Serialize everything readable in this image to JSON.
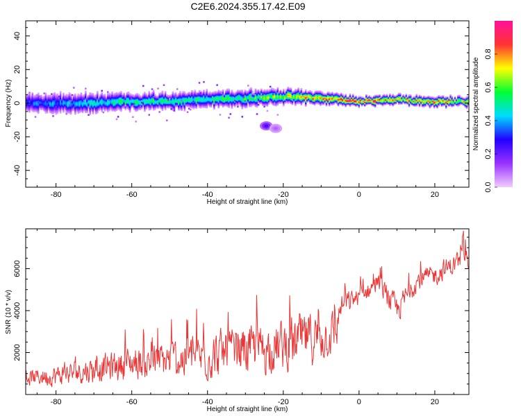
{
  "title": "C2E6.2024.355.17.42.E09",
  "colors": {
    "snr_line": "#ee3333",
    "colormap": [
      "#f2ccff",
      "#9933ff",
      "#2200ff",
      "#00ddff",
      "#00ff33",
      "#ffff00",
      "#ff3333",
      "#ff1199"
    ]
  },
  "chart_data": [
    {
      "type": "heatmap",
      "xlabel": "Height of straight line (km)",
      "ylabel": "Frequency (Hz)",
      "xlim": [
        -88,
        29
      ],
      "ylim": [
        -50,
        49
      ],
      "x_ticks": [
        -80,
        -60,
        -40,
        -20,
        0,
        20
      ],
      "y_ticks": [
        -40,
        -20,
        0,
        20,
        40
      ],
      "colorbar": {
        "label": "Normalized spectral amplitude",
        "range": [
          0.0,
          1.0
        ],
        "ticks": [
          "0.0",
          "0.2",
          "0.4",
          "0.6",
          "0.8"
        ]
      },
      "ridge": {
        "x": [
          -88,
          -80,
          -70,
          -60,
          -50,
          -40,
          -30,
          -20,
          -10,
          0,
          10,
          20,
          29
        ],
        "center": [
          0,
          0,
          0,
          1,
          1,
          2,
          3,
          4,
          3,
          1,
          2,
          1,
          1
        ],
        "width": [
          4,
          4,
          4,
          3.5,
          3.5,
          3.5,
          3.5,
          3,
          2.5,
          2,
          2,
          2,
          2
        ],
        "peak_amplitude": [
          0.35,
          0.4,
          0.5,
          0.55,
          0.55,
          0.55,
          0.6,
          0.7,
          0.85,
          0.95,
          0.8,
          0.85,
          0.75
        ]
      },
      "blobs": [
        {
          "x": -24.5,
          "y": -13.5,
          "amplitude": 0.25
        },
        {
          "x": -22.0,
          "y": -15.0,
          "amplitude": 0.1
        }
      ]
    },
    {
      "type": "line",
      "xlabel": "Height of straight line (km)",
      "ylabel": "SNR (10 * v/v)",
      "xlim": [
        -88,
        29
      ],
      "ylim": [
        0,
        7900
      ],
      "x_ticks": [
        -80,
        -60,
        -40,
        -20,
        0,
        20
      ],
      "y_ticks": [
        2000,
        4000,
        6000
      ],
      "series": [
        {
          "x": [
            -88,
            -80,
            -70,
            -60,
            -50,
            -40,
            -30,
            -20,
            -15,
            -10,
            -6,
            -5,
            0,
            5,
            10,
            15,
            20,
            25,
            29
          ],
          "trend": [
            800,
            900,
            1200,
            1500,
            1600,
            1800,
            2100,
            2300,
            2600,
            2700,
            3000,
            4200,
            4700,
            5300,
            4000,
            5400,
            5700,
            6200,
            6500
          ],
          "spread": [
            500,
            700,
            900,
            1100,
            1300,
            1500,
            1600,
            1700,
            1800,
            1600,
            1400,
            800,
            600,
            600,
            900,
            700,
            700,
            700,
            700
          ]
        }
      ]
    }
  ]
}
